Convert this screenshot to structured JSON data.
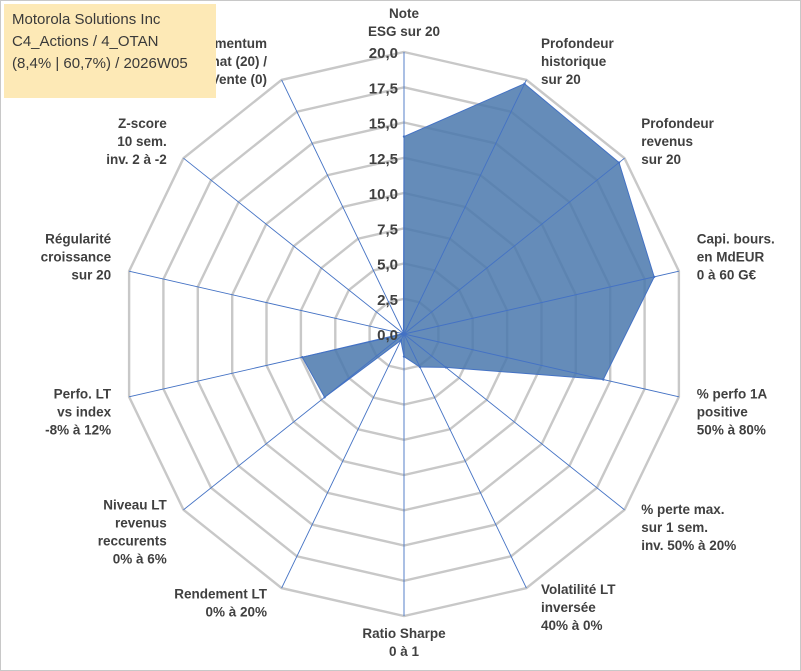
{
  "title": {
    "line1": "Motorola Solutions Inc",
    "line2": "C4_Actions / 4_OTAN",
    "line3": "(8,4% | 60,7%) / 2026W05"
  },
  "colors": {
    "fill": "#4a78ad",
    "stroke": "#4472c4",
    "grid": "#c8c8c8",
    "spoke": "#4472c4",
    "title_bg": "#fde9b6"
  },
  "chart_data": {
    "type": "radar",
    "rmin": 0,
    "rmax": 20,
    "ticks": [
      "0,0",
      "2,5",
      "5,0",
      "7,5",
      "10,0",
      "12,5",
      "15,0",
      "17,5",
      "20,0"
    ],
    "axes": [
      {
        "label": [
          "Note",
          "ESG sur 20"
        ],
        "value": 14
      },
      {
        "label": [
          "Profondeur",
          "historique",
          "sur 20"
        ],
        "value": 19.7
      },
      {
        "label": [
          "Profondeur",
          "revenus",
          "sur 20"
        ],
        "value": 19.5
      },
      {
        "label": [
          "Capi. bours.",
          "en MdEUR",
          "0 à 60 G€"
        ],
        "value": 18.2
      },
      {
        "label": [
          "% perfo 1A",
          "positive",
          "50% à 80%"
        ],
        "value": 14.5
      },
      {
        "label": [
          "% perte max.",
          "sur 1 sem.",
          "inv. 50% à 20%"
        ],
        "value": 3.8
      },
      {
        "label": [
          "Volatilité LT",
          "inversée",
          "40% à 0%"
        ],
        "value": 2.6
      },
      {
        "label": [
          "Ratio Sharpe",
          "0 à 1"
        ],
        "value": 1.6
      },
      {
        "label": [
          "Rendement LT",
          "0% à 20%"
        ],
        "value": 0.5
      },
      {
        "label": [
          "Niveau LT",
          "revenus",
          "reccurents",
          "0% à 6%"
        ],
        "value": 7.2
      },
      {
        "label": [
          "Perfo. LT",
          "vs index",
          "-8% à 12%"
        ],
        "value": 7.4
      },
      {
        "label": [
          "Régularité",
          "croissance",
          "sur 20"
        ],
        "value": 0.1
      },
      {
        "label": [
          "Z-score",
          "10 sem.",
          "inv. 2 à -2"
        ],
        "value": 0.1
      },
      {
        "label": [
          "Momentum",
          "Achat (20) /",
          "Vente (0)"
        ],
        "value": 0.1
      }
    ]
  }
}
